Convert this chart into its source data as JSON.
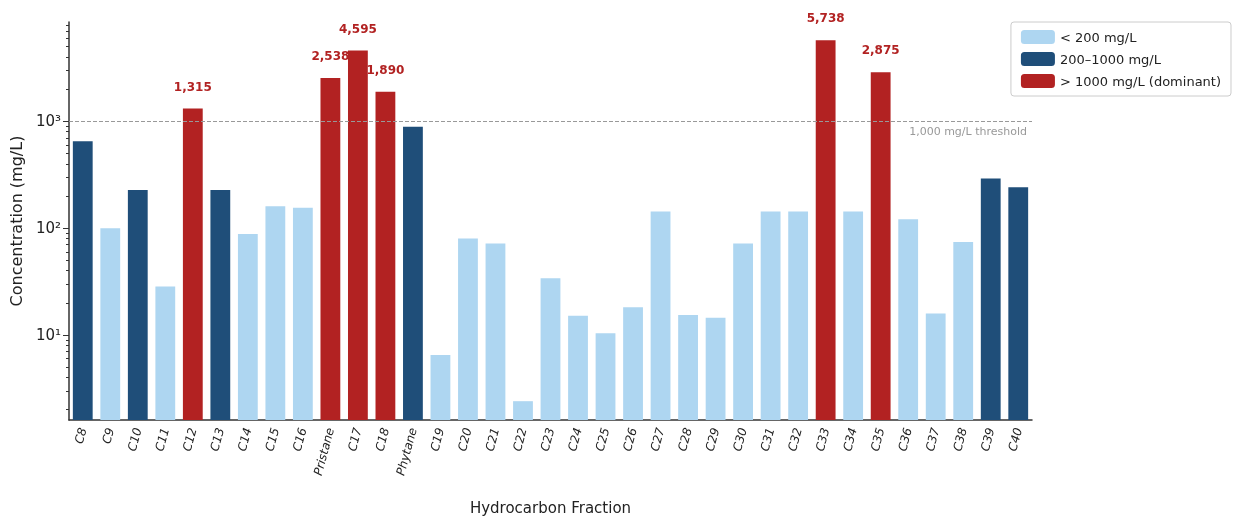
{
  "chart_data": {
    "type": "bar",
    "xlabel": "Hydrocarbon Fraction",
    "ylabel": "Concentration (mg/L)",
    "categories": [
      "C8",
      "C9",
      "C10",
      "C11",
      "C12",
      "C13",
      "C14",
      "C15",
      "C16",
      "Pristane",
      "C17",
      "C18",
      "Phytane",
      "C19",
      "C20",
      "C21",
      "C22",
      "C23",
      "C24",
      "C25",
      "C26",
      "C27",
      "C28",
      "C29",
      "C30",
      "C31",
      "C32",
      "C33",
      "C34",
      "C35",
      "C36",
      "C37",
      "C38",
      "C39",
      "C40"
    ],
    "series": [
      {
        "name": "< 200 mg/L",
        "color": "#aed6f1",
        "values": [
          null,
          100,
          null,
          28.4,
          null,
          null,
          88,
          160,
          155,
          null,
          null,
          null,
          null,
          6.5,
          80,
          72,
          2.4,
          34,
          15.1,
          10.4,
          18.2,
          143,
          15.4,
          14.5,
          72,
          143,
          143,
          null,
          143,
          null,
          121,
          15.9,
          74,
          null,
          null
        ]
      },
      {
        "name": "200–1000 mg/L",
        "color": "#1f4e79",
        "values": [
          652,
          null,
          227,
          null,
          null,
          227,
          null,
          null,
          null,
          null,
          null,
          null,
          887,
          null,
          null,
          null,
          null,
          null,
          null,
          null,
          null,
          null,
          null,
          null,
          null,
          null,
          null,
          null,
          null,
          null,
          null,
          null,
          null,
          291,
          241
        ]
      },
      {
        "name": "> 1000 mg/L (dominant)",
        "color": "#b22222",
        "values": [
          null,
          null,
          null,
          null,
          1315,
          null,
          null,
          null,
          null,
          2538,
          4595,
          1890,
          null,
          null,
          null,
          null,
          null,
          null,
          null,
          null,
          null,
          null,
          null,
          null,
          null,
          null,
          null,
          5738,
          null,
          2875,
          null,
          null,
          null,
          null,
          null
        ],
        "value_labels": [
          null,
          null,
          null,
          null,
          "1,315",
          null,
          null,
          null,
          null,
          "2,538",
          "4,595",
          "1,890",
          null,
          null,
          null,
          null,
          null,
          null,
          null,
          null,
          null,
          null,
          null,
          null,
          null,
          null,
          null,
          "5,738",
          null,
          "2,875",
          null,
          null,
          null,
          null,
          null
        ]
      }
    ],
    "log": true,
    "ylim": [
      1.6,
      8500
    ],
    "yticks": [
      {
        "value": 10,
        "label": "10¹"
      },
      {
        "value": 100,
        "label": "10²"
      },
      {
        "value": 1000,
        "label": "10³"
      }
    ],
    "ref_lines": [
      {
        "axis": "y",
        "value": 1000,
        "label": "1,000 mg/L threshold",
        "color": "#999999",
        "line_style": "dashed"
      }
    ],
    "grid": false,
    "legend": "top right"
  }
}
